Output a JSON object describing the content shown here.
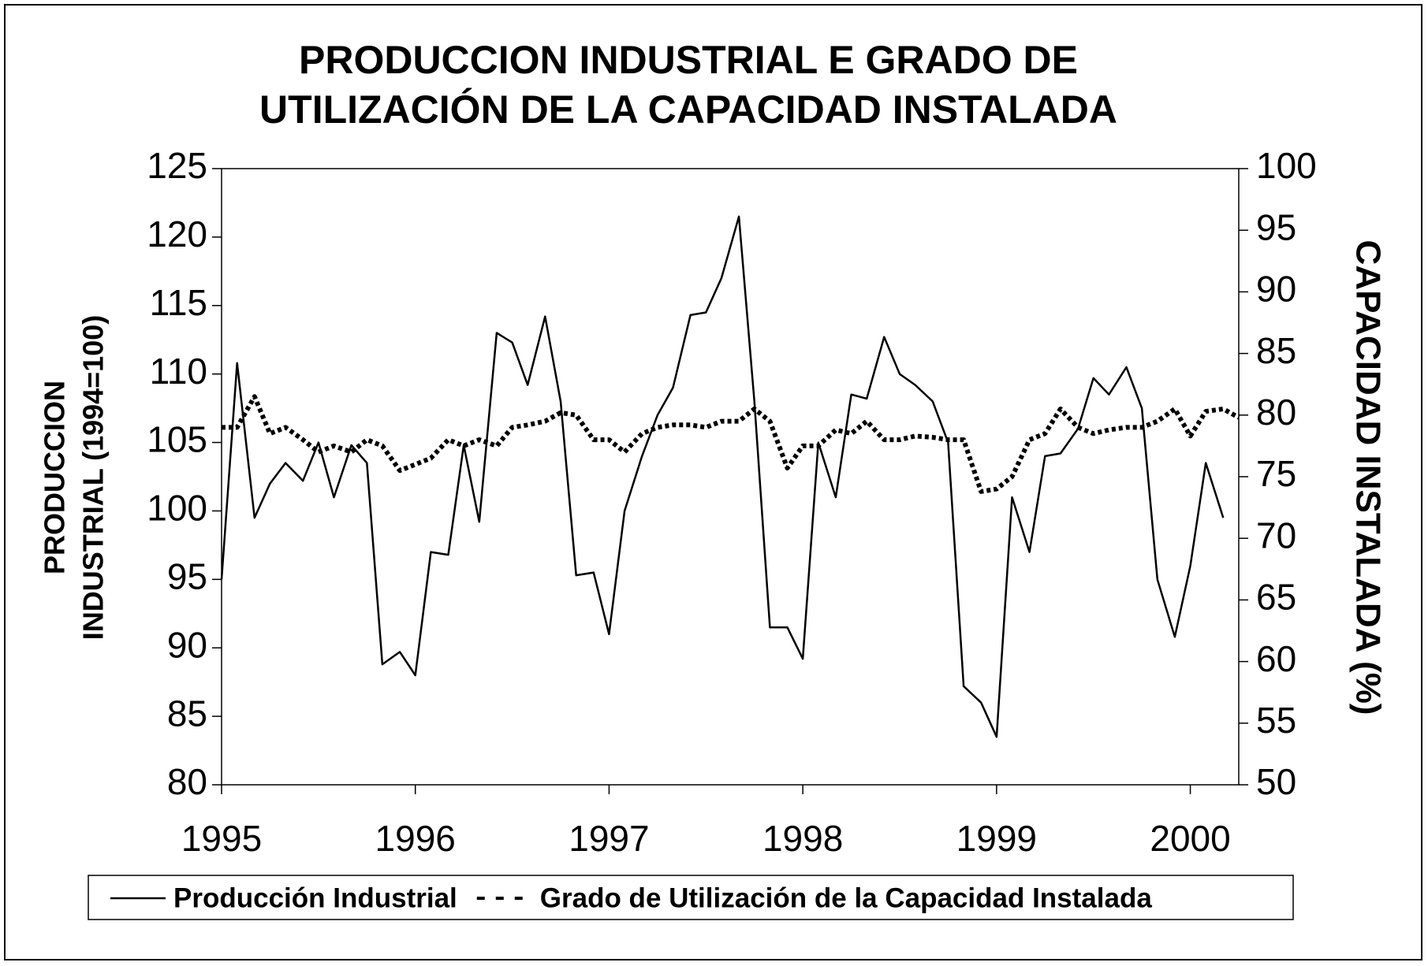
{
  "chart_data": {
    "type": "line",
    "title": [
      "PRODUCCION INDUSTRIAL E GRADO DE",
      "UTILIZACIÓN DE LA CAPACIDAD INSTALADA"
    ],
    "ylabel": [
      "PRODUCCION",
      "INDUSTRIAL (1994=100)"
    ],
    "y2label": "CAPACIDAD INSTALADA (%)",
    "x": [
      1995.0,
      1995.08,
      1995.17,
      1995.25,
      1995.33,
      1995.42,
      1995.5,
      1995.58,
      1995.67,
      1995.75,
      1995.83,
      1995.92,
      1996.0,
      1996.08,
      1996.17,
      1996.25,
      1996.33,
      1996.42,
      1996.5,
      1996.58,
      1996.67,
      1996.75,
      1996.83,
      1996.92,
      1997.0,
      1997.08,
      1997.17,
      1997.25,
      1997.33,
      1997.42,
      1997.5,
      1997.58,
      1997.67,
      1997.75,
      1997.83,
      1997.92,
      1998.0,
      1998.08,
      1998.17,
      1998.25,
      1998.33,
      1998.42,
      1998.5,
      1998.58,
      1998.67,
      1998.75,
      1998.83,
      1998.92,
      1999.0,
      1999.08,
      1999.17,
      1999.25,
      1999.33,
      1999.42,
      1999.5,
      1999.58,
      1999.67,
      1999.75,
      1999.83,
      1999.92,
      2000.0,
      2000.08,
      2000.17,
      2000.25
    ],
    "series": [
      {
        "name": "Producción Industrial",
        "color": "#000000",
        "style": "solid",
        "axis": "y",
        "values": [
          95,
          110.8,
          99.5,
          102,
          103.5,
          102.2,
          105,
          101,
          104.8,
          103.5,
          88.8,
          89.7,
          88,
          97,
          96.8,
          104.8,
          99.2,
          113,
          112.3,
          109.2,
          114.2,
          108,
          95.3,
          95.5,
          91,
          100,
          104,
          107,
          109,
          114.3,
          114.5,
          117,
          121.5,
          108,
          91.5,
          91.5,
          89.2,
          105,
          101,
          108.5,
          108.2,
          112.7,
          110,
          109.2,
          108,
          105,
          87.2,
          86,
          83.5,
          101,
          97,
          104,
          104.2,
          106,
          109.7,
          108.5,
          110.5,
          107.5,
          95,
          90.8,
          96,
          103.5,
          99.5,
          null
        ]
      },
      {
        "name": "Grado de Utilización de la Capacidad Instalada",
        "color": "#000000",
        "style": "dashed",
        "axis": "y2",
        "values": [
          79,
          79,
          81.5,
          78.5,
          79,
          78,
          77,
          77.5,
          77,
          78,
          77.5,
          75.5,
          76,
          76.5,
          78,
          77.5,
          78,
          77.5,
          79,
          79.2,
          79.5,
          80.2,
          80,
          78,
          78,
          77,
          78.5,
          79,
          79.2,
          79.2,
          79,
          79.5,
          79.5,
          80.5,
          79.5,
          75.7,
          77.5,
          77.5,
          78.8,
          78.5,
          79.5,
          78,
          78,
          78.3,
          78.2,
          78,
          78,
          73.8,
          74,
          75,
          78,
          78.5,
          80.5,
          79,
          78.5,
          78.8,
          79,
          79,
          79.5,
          80.5,
          78.3,
          80.3,
          80.5,
          79.8
        ]
      }
    ],
    "xlim": [
      1995,
      2000.25
    ],
    "xticks": [
      1995,
      1996,
      1997,
      1998,
      1999,
      2000
    ],
    "ylim": [
      80,
      125
    ],
    "yticks": [
      80,
      85,
      90,
      95,
      100,
      105,
      110,
      115,
      120,
      125
    ],
    "y2lim": [
      50,
      100
    ],
    "y2ticks": [
      50,
      55,
      60,
      65,
      70,
      75,
      80,
      85,
      90,
      95,
      100
    ],
    "grid": false,
    "legend": "bottom"
  }
}
